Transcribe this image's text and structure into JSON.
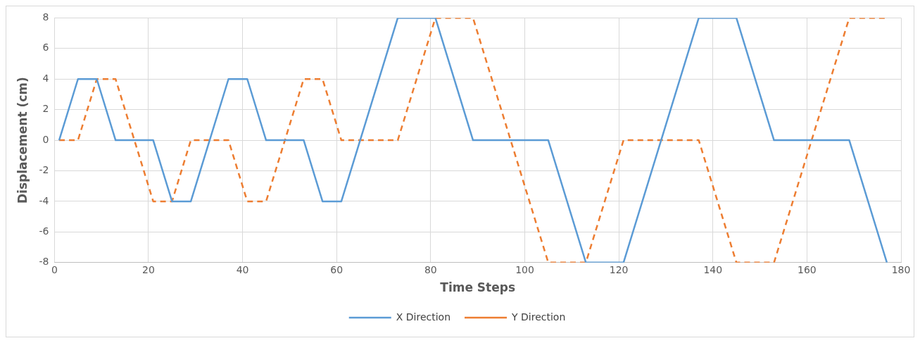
{
  "chart_data": {
    "type": "line",
    "xlabel": "Time Steps",
    "ylabel": "Displacement (cm)",
    "xlim": [
      0,
      180
    ],
    "xticks": [
      0,
      20,
      40,
      60,
      80,
      100,
      120,
      140,
      160,
      180
    ],
    "ylim": [
      -8,
      8
    ],
    "yticks": [
      -8,
      -6,
      -4,
      -2,
      0,
      2,
      4,
      6,
      8
    ],
    "grid": true,
    "legend": "bottom",
    "marker": "none",
    "series": [
      {
        "name": "X Direction",
        "color": "#5b9bd5",
        "line_style": "solid",
        "x": [
          1,
          5,
          9,
          13,
          21,
          25,
          29,
          37,
          41,
          45,
          53,
          57,
          61,
          73,
          81,
          89,
          105,
          113,
          121,
          137,
          145,
          153,
          169,
          177
        ],
        "values": [
          0,
          4,
          4,
          0,
          0,
          -4,
          -4,
          4,
          4,
          0,
          0,
          -4,
          -4,
          8,
          8,
          0,
          0,
          -8,
          -8,
          8,
          8,
          0,
          0,
          -8
        ]
      },
      {
        "name": "Y Direction",
        "color": "#ed7d31",
        "line_style": "dashed",
        "x": [
          1,
          5,
          9,
          13,
          21,
          25,
          29,
          37,
          41,
          45,
          53,
          57,
          61,
          73,
          81,
          89,
          105,
          113,
          121,
          137,
          145,
          153,
          169,
          177
        ],
        "values": [
          0,
          0,
          4,
          4,
          -4,
          -4,
          0,
          0,
          -4,
          -4,
          4,
          4,
          0,
          0,
          8,
          8,
          -8,
          -8,
          0,
          0,
          -8,
          -8,
          8,
          8
        ]
      }
    ]
  }
}
